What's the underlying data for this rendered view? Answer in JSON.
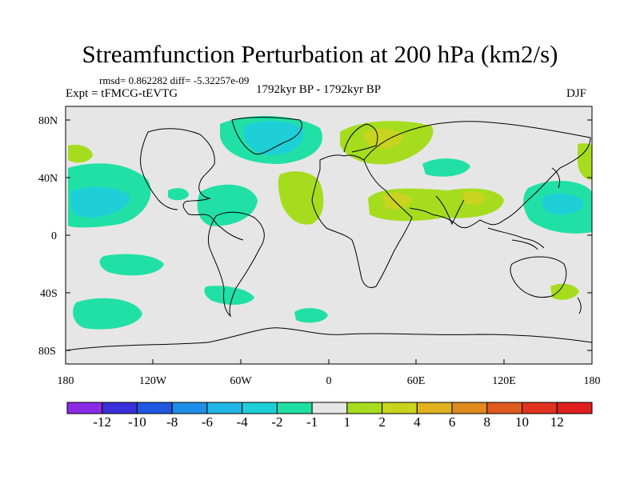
{
  "title": "Streamfunction Perturbation at 200 hPa (km2/s)",
  "stats": "rmsd= 0.862282 diff= -5.32257e-09",
  "expt": "Expt = tFMCG-tEVTG",
  "period": "1792kyr BP - 1792kyr BP",
  "season": "DJF",
  "lat_ticks": [
    "80N",
    "40N",
    "0",
    "40S",
    "80S"
  ],
  "lon_ticks": [
    "180",
    "120W",
    "60W",
    "0",
    "60E",
    "120E",
    "180"
  ],
  "colorbar": {
    "labels": [
      "-12",
      "-10",
      "-8",
      "-6",
      "-4",
      "-2",
      "-1",
      "1",
      "2",
      "4",
      "6",
      "8",
      "10",
      "12"
    ],
    "colors": [
      "#8a2be6",
      "#3b2fd9",
      "#1f57e0",
      "#1d8fe8",
      "#1fb6e8",
      "#1ecfd7",
      "#21e0a6",
      "#e6e6e6",
      "#a5dd1e",
      "#c8d41e",
      "#e0b21e",
      "#e08a1e",
      "#e05a1e",
      "#e0321e",
      "#e01e1e"
    ]
  },
  "map": {
    "background": "#e6e6e6",
    "coast": "#000000"
  }
}
